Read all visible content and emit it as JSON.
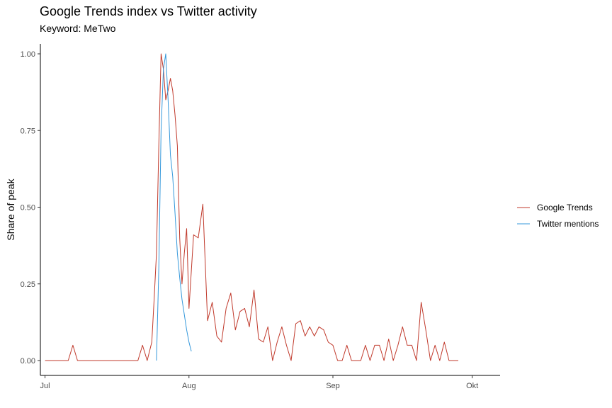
{
  "chart_data": {
    "type": "line",
    "title": "Google Trends index vs Twitter activity",
    "subtitle": "Keyword: MeTwo",
    "xlabel": "",
    "ylabel": "Share of peak",
    "ylim": [
      0,
      1
    ],
    "y_ticks": [
      0,
      0.25,
      0.5,
      0.75,
      1
    ],
    "y_tick_labels": [
      "0.00",
      "0.25",
      "0.50",
      "0.75",
      "1.00"
    ],
    "x_range": [
      "2018-06-30",
      "2018-10-07"
    ],
    "x_ticks": [
      "2018-07-01",
      "2018-08-01",
      "2018-09-01",
      "2018-10-01"
    ],
    "x_tick_labels": [
      "Jul",
      "Aug",
      "Sep",
      "Okt"
    ],
    "grid": false,
    "legend_position": "right",
    "series": [
      {
        "name": "Google Trends",
        "color": "#c0392b",
        "points": [
          [
            "2018-07-01",
            0
          ],
          [
            "2018-07-02",
            0
          ],
          [
            "2018-07-03",
            0
          ],
          [
            "2018-07-04",
            0
          ],
          [
            "2018-07-05",
            0
          ],
          [
            "2018-07-06",
            0
          ],
          [
            "2018-07-07",
            0.05
          ],
          [
            "2018-07-08",
            0
          ],
          [
            "2018-07-09",
            0
          ],
          [
            "2018-07-10",
            0
          ],
          [
            "2018-07-11",
            0
          ],
          [
            "2018-07-12",
            0
          ],
          [
            "2018-07-13",
            0
          ],
          [
            "2018-07-14",
            0
          ],
          [
            "2018-07-15",
            0
          ],
          [
            "2018-07-16",
            0
          ],
          [
            "2018-07-17",
            0
          ],
          [
            "2018-07-18",
            0
          ],
          [
            "2018-07-19",
            0
          ],
          [
            "2018-07-20",
            0
          ],
          [
            "2018-07-21",
            0
          ],
          [
            "2018-07-22",
            0.05
          ],
          [
            "2018-07-23",
            0
          ],
          [
            "2018-07-24",
            0.06
          ],
          [
            "2018-07-24T12:00",
            0.2
          ],
          [
            "2018-07-25",
            0.35
          ],
          [
            "2018-07-25T12:00",
            0.7
          ],
          [
            "2018-07-26",
            1.0
          ],
          [
            "2018-07-26T12:00",
            0.95
          ],
          [
            "2018-07-27",
            0.85
          ],
          [
            "2018-07-27T12:00",
            0.88
          ],
          [
            "2018-07-28",
            0.92
          ],
          [
            "2018-07-28T12:00",
            0.88
          ],
          [
            "2018-07-29",
            0.8
          ],
          [
            "2018-07-29T12:00",
            0.7
          ],
          [
            "2018-07-30",
            0.4
          ],
          [
            "2018-07-30T12:00",
            0.25
          ],
          [
            "2018-07-31",
            0.35
          ],
          [
            "2018-07-31T12:00",
            0.43
          ],
          [
            "2018-08-01",
            0.17
          ],
          [
            "2018-08-02",
            0.41
          ],
          [
            "2018-08-03",
            0.4
          ],
          [
            "2018-08-04",
            0.51
          ],
          [
            "2018-08-05",
            0.13
          ],
          [
            "2018-08-06",
            0.19
          ],
          [
            "2018-08-07",
            0.08
          ],
          [
            "2018-08-08",
            0.06
          ],
          [
            "2018-08-09",
            0.17
          ],
          [
            "2018-08-10",
            0.22
          ],
          [
            "2018-08-11",
            0.1
          ],
          [
            "2018-08-12",
            0.16
          ],
          [
            "2018-08-13",
            0.17
          ],
          [
            "2018-08-14",
            0.11
          ],
          [
            "2018-08-15",
            0.23
          ],
          [
            "2018-08-16",
            0.07
          ],
          [
            "2018-08-17",
            0.06
          ],
          [
            "2018-08-18",
            0.11
          ],
          [
            "2018-08-19",
            0
          ],
          [
            "2018-08-20",
            0.06
          ],
          [
            "2018-08-21",
            0.11
          ],
          [
            "2018-08-22",
            0.05
          ],
          [
            "2018-08-23",
            0
          ],
          [
            "2018-08-24",
            0.12
          ],
          [
            "2018-08-25",
            0.13
          ],
          [
            "2018-08-26",
            0.08
          ],
          [
            "2018-08-27",
            0.11
          ],
          [
            "2018-08-28",
            0.08
          ],
          [
            "2018-08-29",
            0.11
          ],
          [
            "2018-08-30",
            0.1
          ],
          [
            "2018-08-31",
            0.06
          ],
          [
            "2018-09-01",
            0.05
          ],
          [
            "2018-09-02",
            0
          ],
          [
            "2018-09-03",
            0
          ],
          [
            "2018-09-04",
            0.05
          ],
          [
            "2018-09-05",
            0
          ],
          [
            "2018-09-06",
            0
          ],
          [
            "2018-09-07",
            0
          ],
          [
            "2018-09-08",
            0.05
          ],
          [
            "2018-09-09",
            0
          ],
          [
            "2018-09-10",
            0.05
          ],
          [
            "2018-09-11",
            0.05
          ],
          [
            "2018-09-12",
            0
          ],
          [
            "2018-09-13",
            0.07
          ],
          [
            "2018-09-14",
            0
          ],
          [
            "2018-09-15",
            0.05
          ],
          [
            "2018-09-16",
            0.11
          ],
          [
            "2018-09-17",
            0.05
          ],
          [
            "2018-09-18",
            0.05
          ],
          [
            "2018-09-19",
            0
          ],
          [
            "2018-09-20",
            0.19
          ],
          [
            "2018-09-21",
            0.1
          ],
          [
            "2018-09-22",
            0
          ],
          [
            "2018-09-23",
            0.05
          ],
          [
            "2018-09-24",
            0
          ],
          [
            "2018-09-25",
            0.06
          ],
          [
            "2018-09-26",
            0
          ],
          [
            "2018-09-27",
            0
          ],
          [
            "2018-09-28",
            0
          ]
        ]
      },
      {
        "name": "Twitter mentions",
        "color": "#3498db",
        "points": [
          [
            "2018-07-25",
            0
          ],
          [
            "2018-07-25T12:00",
            0.3
          ],
          [
            "2018-07-26",
            0.75
          ],
          [
            "2018-07-26T12:00",
            0.95
          ],
          [
            "2018-07-27",
            1.0
          ],
          [
            "2018-07-27T12:00",
            0.85
          ],
          [
            "2018-07-28",
            0.67
          ],
          [
            "2018-07-28T12:00",
            0.6
          ],
          [
            "2018-07-29",
            0.48
          ],
          [
            "2018-07-29T12:00",
            0.35
          ],
          [
            "2018-07-30",
            0.27
          ],
          [
            "2018-07-30T12:00",
            0.2
          ],
          [
            "2018-07-31",
            0.15
          ],
          [
            "2018-07-31T12:00",
            0.1
          ],
          [
            "2018-08-01",
            0.06
          ],
          [
            "2018-08-01T12:00",
            0.03
          ]
        ]
      }
    ]
  }
}
